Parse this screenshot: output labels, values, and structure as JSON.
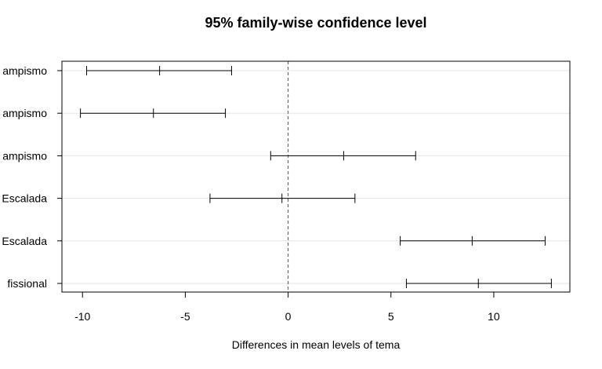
{
  "chart_data": {
    "type": "interval",
    "title": "95% family-wise confidence level",
    "xlabel": "Differences in mean levels of tema",
    "ylabel": "",
    "xlim": [
      -11.0,
      13.7
    ],
    "xticks": [
      -10,
      -5,
      0,
      5,
      10
    ],
    "xtick_labels": [
      "-10",
      "-5",
      "0",
      "5",
      "10"
    ],
    "reference_line": 0,
    "grid": true,
    "categories": [
      "ampismo",
      "ampismo",
      "ampismo",
      "Escalada",
      "Escalada",
      "fissional"
    ],
    "intervals": [
      {
        "lower": -9.8,
        "estimate": -6.25,
        "upper": -2.75
      },
      {
        "lower": -10.1,
        "estimate": -6.55,
        "upper": -3.05
      },
      {
        "lower": -0.85,
        "estimate": 2.7,
        "upper": 6.2
      },
      {
        "lower": -3.8,
        "estimate": -0.3,
        "upper": 3.25
      },
      {
        "lower": 5.45,
        "estimate": 8.95,
        "upper": 12.5
      },
      {
        "lower": 5.75,
        "estimate": 9.25,
        "upper": 12.8
      }
    ]
  }
}
